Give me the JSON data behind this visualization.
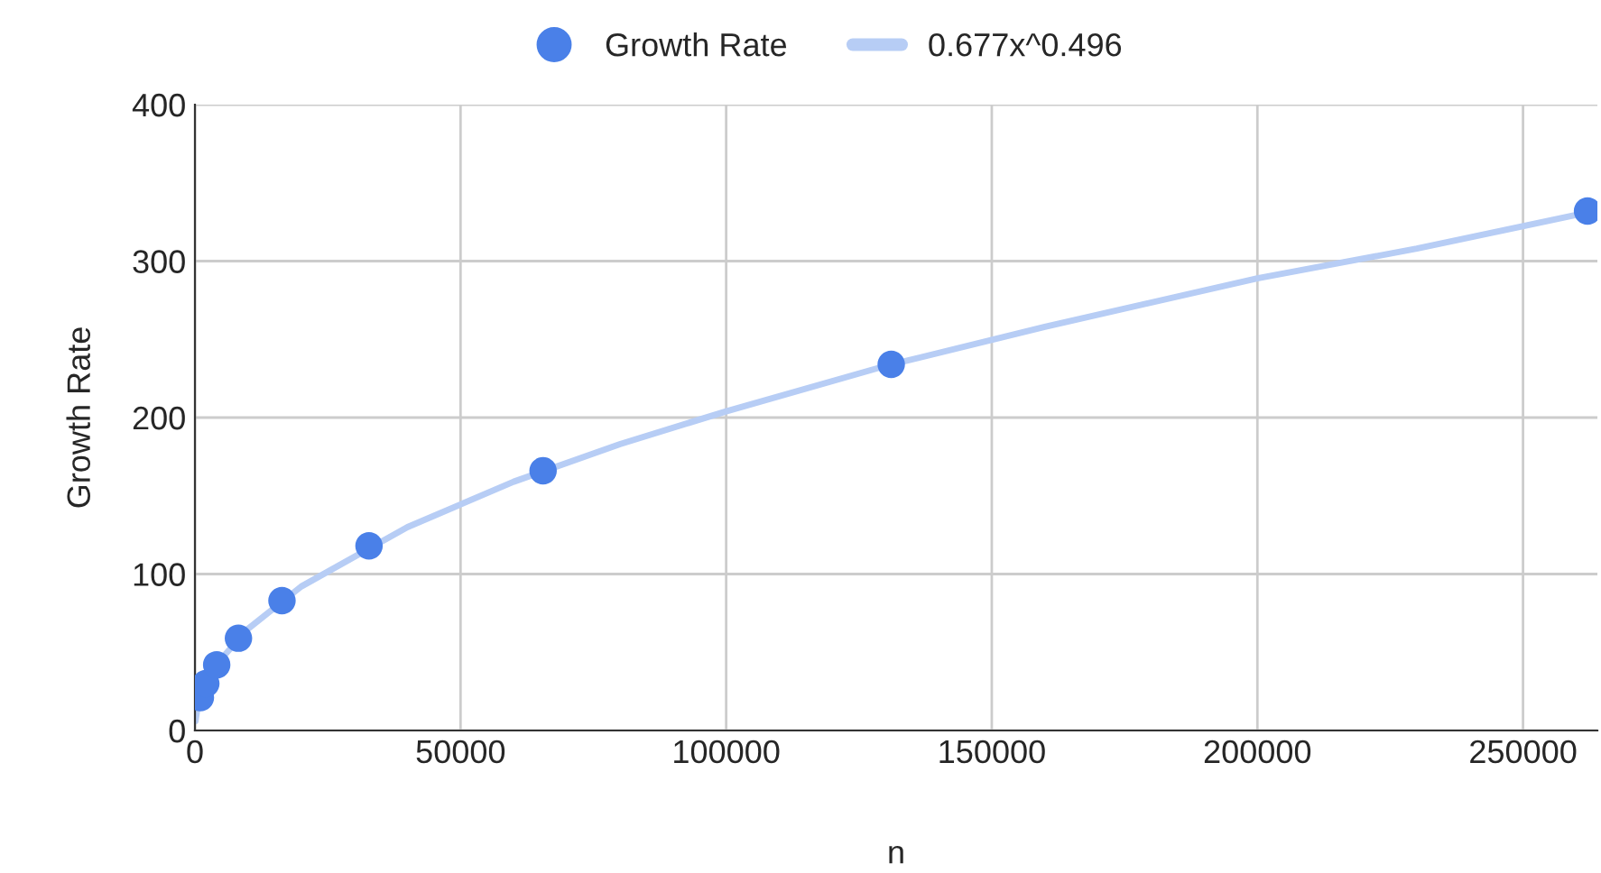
{
  "chart_data": {
    "type": "scatter",
    "xlabel": "n",
    "ylabel": "Growth Rate",
    "xlim": [
      0,
      264000
    ],
    "xticks": [
      0,
      50000,
      100000,
      150000,
      200000,
      250000
    ],
    "ylim": [
      0,
      400
    ],
    "yticks": [
      0,
      100,
      200,
      300,
      400
    ],
    "grid": true,
    "legend": "top",
    "marker": "circle",
    "series": [
      {
        "name": "0.677x^0.496",
        "type": "line",
        "marker": "none",
        "color": "#b7cdf5",
        "line_style": "solid",
        "x": [
          100,
          500,
          2000,
          5000,
          10000,
          20000,
          40000,
          60000,
          80000,
          100000,
          130000,
          160000,
          200000,
          230000,
          262144
        ],
        "values": [
          6,
          15,
          30,
          46,
          65,
          92,
          130,
          159,
          183,
          204,
          233,
          258,
          289,
          308,
          331
        ]
      },
      {
        "name": "Growth Rate",
        "color": "#4a80e8",
        "x": [
          1024,
          2048,
          4096,
          8192,
          16384,
          32768,
          65536,
          131072,
          262144
        ],
        "values": [
          21,
          30,
          42,
          59,
          83,
          118,
          166,
          234,
          332
        ]
      }
    ]
  }
}
